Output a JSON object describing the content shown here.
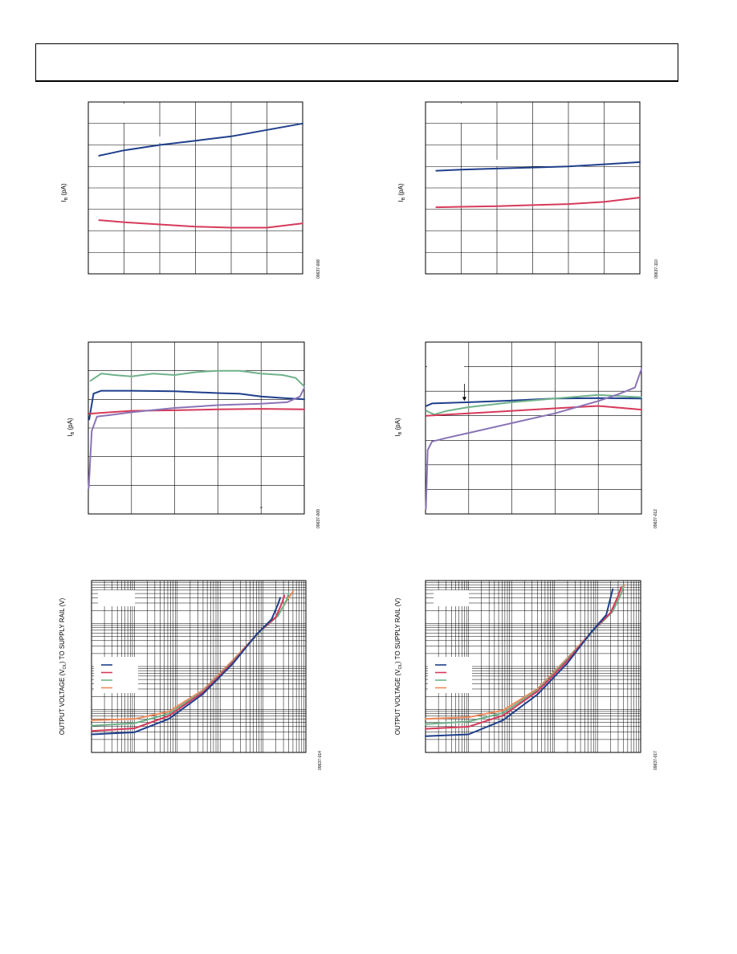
{
  "page": {
    "header_text": ""
  },
  "colors": {
    "blue": "#1f3f8c",
    "red": "#d63a5a",
    "green": "#6fb28a",
    "purple": "#8a73b6",
    "orange": "#ee8a5a"
  },
  "chart_data": [
    {
      "id": "chart1",
      "type": "line",
      "ylabel": "I_B (pA)",
      "fig_id": "09637-008",
      "grid": "6x8",
      "xlim": [
        0,
        6
      ],
      "ylim": [
        0,
        8
      ],
      "series": [
        {
          "color": "blue",
          "x": [
            0.3,
            1,
            2,
            3,
            4,
            5,
            6
          ],
          "y": [
            5.5,
            5.75,
            6.0,
            6.2,
            6.4,
            6.7,
            7.0
          ]
        },
        {
          "color": "red",
          "x": [
            0.3,
            1,
            2,
            3,
            4,
            5,
            6
          ],
          "y": [
            2.5,
            2.4,
            2.3,
            2.2,
            2.15,
            2.15,
            2.35
          ]
        }
      ]
    },
    {
      "id": "chart2",
      "type": "line",
      "ylabel": "I_B (pA)",
      "fig_id": "09637-110",
      "grid": "6x8",
      "xlim": [
        0,
        6
      ],
      "ylim": [
        0,
        8
      ],
      "series": [
        {
          "color": "blue",
          "x": [
            0.3,
            1,
            2,
            3,
            4,
            5,
            6
          ],
          "y": [
            4.8,
            4.85,
            4.9,
            4.95,
            5.0,
            5.1,
            5.2
          ]
        },
        {
          "color": "red",
          "x": [
            0.3,
            1,
            2,
            3,
            4,
            5,
            6
          ],
          "y": [
            3.1,
            3.12,
            3.15,
            3.2,
            3.25,
            3.35,
            3.55
          ]
        }
      ]
    },
    {
      "id": "chart3",
      "type": "line",
      "ylabel": "I_B (pA)",
      "fig_id": "09637-009",
      "grid": "5x6",
      "xlim": [
        0,
        5
      ],
      "ylim": [
        0,
        6
      ],
      "series": [
        {
          "color": "green",
          "x": [
            0.05,
            0.3,
            0.6,
            1,
            1.5,
            2,
            2.5,
            3,
            3.5,
            4,
            4.5,
            4.8,
            5
          ],
          "y": [
            4.65,
            4.9,
            4.85,
            4.8,
            4.9,
            4.85,
            4.95,
            5.0,
            5.0,
            4.9,
            4.85,
            4.75,
            4.45
          ]
        },
        {
          "color": "blue",
          "x": [
            0.02,
            0.12,
            0.3,
            1,
            2,
            3,
            3.5,
            4,
            4.5,
            5
          ],
          "y": [
            3.3,
            4.2,
            4.3,
            4.3,
            4.28,
            4.22,
            4.2,
            4.1,
            4.05,
            4.0
          ]
        },
        {
          "color": "red",
          "x": [
            0.02,
            0.5,
            1,
            2,
            3,
            4,
            5
          ],
          "y": [
            3.5,
            3.55,
            3.6,
            3.62,
            3.65,
            3.67,
            3.65
          ]
        },
        {
          "color": "purple",
          "x": [
            0.01,
            0.08,
            0.2,
            0.5,
            1,
            2,
            3,
            4,
            4.6,
            4.9,
            5
          ],
          "y": [
            0.9,
            2.9,
            3.4,
            3.45,
            3.55,
            3.7,
            3.8,
            3.85,
            3.9,
            4.1,
            4.4
          ]
        }
      ]
    },
    {
      "id": "chart4",
      "type": "line",
      "ylabel": "I_B (pA)",
      "fig_id": "09637-012",
      "grid": "5x7",
      "xlim": [
        0,
        5
      ],
      "ylim": [
        0,
        7
      ],
      "series": [
        {
          "color": "blue",
          "x": [
            0.02,
            0.15,
            0.5,
            1,
            2,
            3,
            4,
            5
          ],
          "y": [
            4.4,
            4.5,
            4.52,
            4.55,
            4.62,
            4.7,
            4.72,
            4.7
          ]
        },
        {
          "color": "green",
          "x": [
            0.02,
            0.2,
            0.5,
            1,
            2,
            3,
            4,
            4.5,
            5
          ],
          "y": [
            4.2,
            4.05,
            4.2,
            4.35,
            4.55,
            4.7,
            4.85,
            4.8,
            4.75
          ]
        },
        {
          "color": "red",
          "x": [
            0.02,
            0.5,
            1,
            2,
            3,
            4,
            5
          ],
          "y": [
            4.0,
            4.05,
            4.1,
            4.2,
            4.3,
            4.4,
            4.25
          ]
        },
        {
          "color": "purple",
          "x": [
            0.01,
            0.05,
            0.15,
            0.5,
            1,
            2,
            3,
            4,
            4.5,
            4.85,
            5
          ],
          "y": [
            0.2,
            2.6,
            2.95,
            3.1,
            3.3,
            3.7,
            4.1,
            4.6,
            4.9,
            5.15,
            5.9
          ]
        }
      ]
    },
    {
      "id": "chart5",
      "type": "line",
      "ylabel": "OUTPUT VOLTAGE (V_OL) TO SUPPLY RAIL (V)",
      "fig_id": "09637-014",
      "scale": "log-log",
      "x_decades": 5,
      "y_decades": 4,
      "xlim": [
        0,
        5
      ],
      "ylim": [
        0,
        4
      ],
      "series": [
        {
          "color": "orange",
          "x": [
            0,
            1,
            1.8,
            2.6,
            3.3,
            3.95,
            4.35,
            4.6,
            4.7
          ],
          "y": [
            0.75,
            0.78,
            0.95,
            1.45,
            2.15,
            2.85,
            3.2,
            3.6,
            3.75
          ]
        },
        {
          "color": "green",
          "x": [
            0,
            1,
            1.8,
            2.6,
            3.3,
            3.95,
            4.35,
            4.55,
            4.6
          ],
          "y": [
            0.62,
            0.68,
            0.9,
            1.42,
            2.12,
            2.83,
            3.18,
            3.55,
            3.7
          ]
        },
        {
          "color": "red",
          "x": [
            0,
            1,
            1.8,
            2.6,
            3.3,
            3.9,
            4.3,
            4.45,
            4.5
          ],
          "y": [
            0.5,
            0.56,
            0.85,
            1.4,
            2.1,
            2.8,
            3.15,
            3.5,
            3.65
          ]
        },
        {
          "color": "blue",
          "x": [
            0,
            1,
            1.8,
            2.6,
            3.3,
            3.85,
            4.2,
            4.35,
            4.4
          ],
          "y": [
            0.42,
            0.47,
            0.78,
            1.36,
            2.07,
            2.75,
            3.1,
            3.45,
            3.6
          ]
        }
      ],
      "legend": {
        "position": "middle-left",
        "colors": [
          "blue",
          "red",
          "green",
          "orange"
        ]
      }
    },
    {
      "id": "chart6",
      "type": "line",
      "ylabel": "OUTPUT VOLTAGE (V_OL) TO SUPPLY RAIL (V)",
      "fig_id": "09637-017",
      "scale": "log-log",
      "x_decades": 5,
      "y_decades": 4,
      "xlim": [
        0,
        5
      ],
      "ylim": [
        0,
        4
      ],
      "series": [
        {
          "color": "orange",
          "x": [
            0,
            1,
            1.8,
            2.6,
            3.3,
            3.95,
            4.35,
            4.55,
            4.62
          ],
          "y": [
            0.78,
            0.82,
            0.98,
            1.48,
            2.2,
            2.9,
            3.3,
            3.7,
            3.9
          ]
        },
        {
          "color": "green",
          "x": [
            0,
            1,
            1.8,
            2.6,
            3.3,
            3.95,
            4.35,
            4.55,
            4.6
          ],
          "y": [
            0.66,
            0.72,
            0.92,
            1.45,
            2.18,
            2.88,
            3.28,
            3.7,
            3.88
          ]
        },
        {
          "color": "red",
          "x": [
            0,
            1,
            1.8,
            2.6,
            3.3,
            3.9,
            4.3,
            4.48,
            4.55
          ],
          "y": [
            0.55,
            0.6,
            0.86,
            1.42,
            2.14,
            2.85,
            3.25,
            3.65,
            3.85
          ]
        },
        {
          "color": "blue",
          "x": [
            0,
            1,
            1.8,
            2.6,
            3.3,
            3.85,
            4.2,
            4.3,
            4.35
          ],
          "y": [
            0.38,
            0.42,
            0.75,
            1.35,
            2.08,
            2.8,
            3.2,
            3.6,
            3.8
          ]
        }
      ],
      "legend": {
        "position": "middle-left",
        "colors": [
          "blue",
          "red",
          "green",
          "orange"
        ]
      }
    }
  ]
}
